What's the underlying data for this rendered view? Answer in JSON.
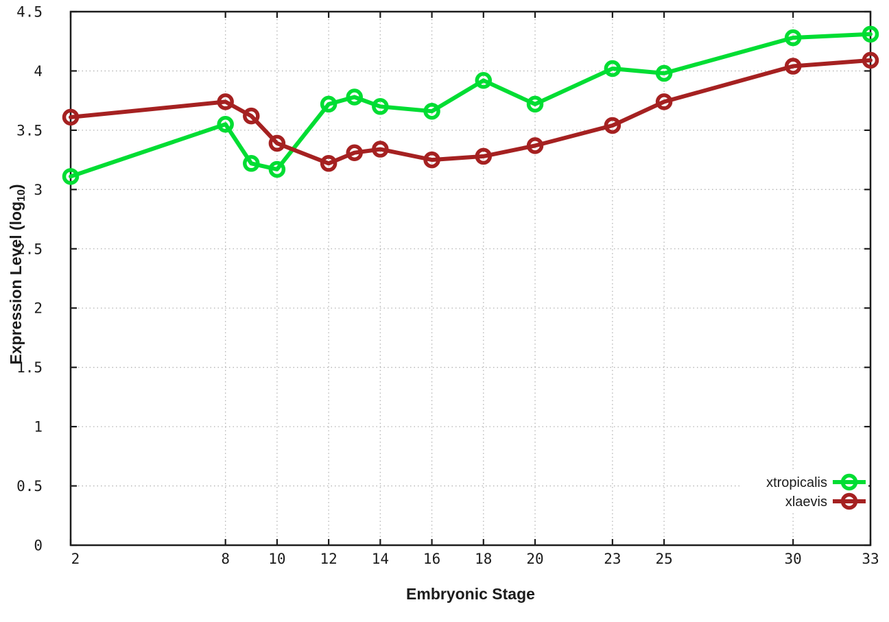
{
  "chart_data": {
    "type": "line",
    "title": "",
    "xlabel": "Embryonic Stage",
    "ylabel": "Expression Level (log10)",
    "ylabel_parts": {
      "pre": "Expression Level (log",
      "sub": "10",
      "post": ")"
    },
    "xlim": [
      2,
      33
    ],
    "ylim": [
      0,
      4.5
    ],
    "grid": true,
    "legend_position": "inside-bottom-right",
    "x_ticks": [
      2,
      8,
      10,
      12,
      14,
      16,
      18,
      20,
      23,
      25,
      30,
      33
    ],
    "x_tick_labels": [
      "2",
      "8",
      "10",
      "12",
      "14",
      "16",
      "18",
      "20",
      "23",
      "25",
      "30",
      "33"
    ],
    "y_ticks": [
      0,
      0.5,
      1,
      1.5,
      2,
      2.5,
      3,
      3.5,
      4,
      4.5
    ],
    "y_tick_labels": [
      "0",
      "0.5",
      "1",
      "1.5",
      "2",
      "2.5",
      "3",
      "3.5",
      "4",
      "4.5"
    ],
    "x": [
      2,
      8,
      9,
      10,
      12,
      13,
      14,
      16,
      18,
      20,
      23,
      25,
      30,
      33
    ],
    "series": [
      {
        "name": "xtropicalis",
        "color": "#00dd33",
        "values": [
          3.11,
          3.55,
          3.22,
          3.17,
          3.72,
          3.78,
          3.7,
          3.66,
          3.92,
          3.72,
          4.02,
          3.98,
          4.28,
          4.31
        ]
      },
      {
        "name": "xlaevis",
        "color": "#a52121",
        "values": [
          3.61,
          3.74,
          3.62,
          3.39,
          3.22,
          3.31,
          3.34,
          3.25,
          3.28,
          3.37,
          3.54,
          3.74,
          4.04,
          4.09
        ]
      }
    ],
    "legend": [
      "xtropicalis",
      "xlaevis"
    ]
  },
  "colors": {
    "background": "#ffffff",
    "grid": "#b3b3b3",
    "axis": "#1c1c1c",
    "text": "#1c1c1c"
  }
}
